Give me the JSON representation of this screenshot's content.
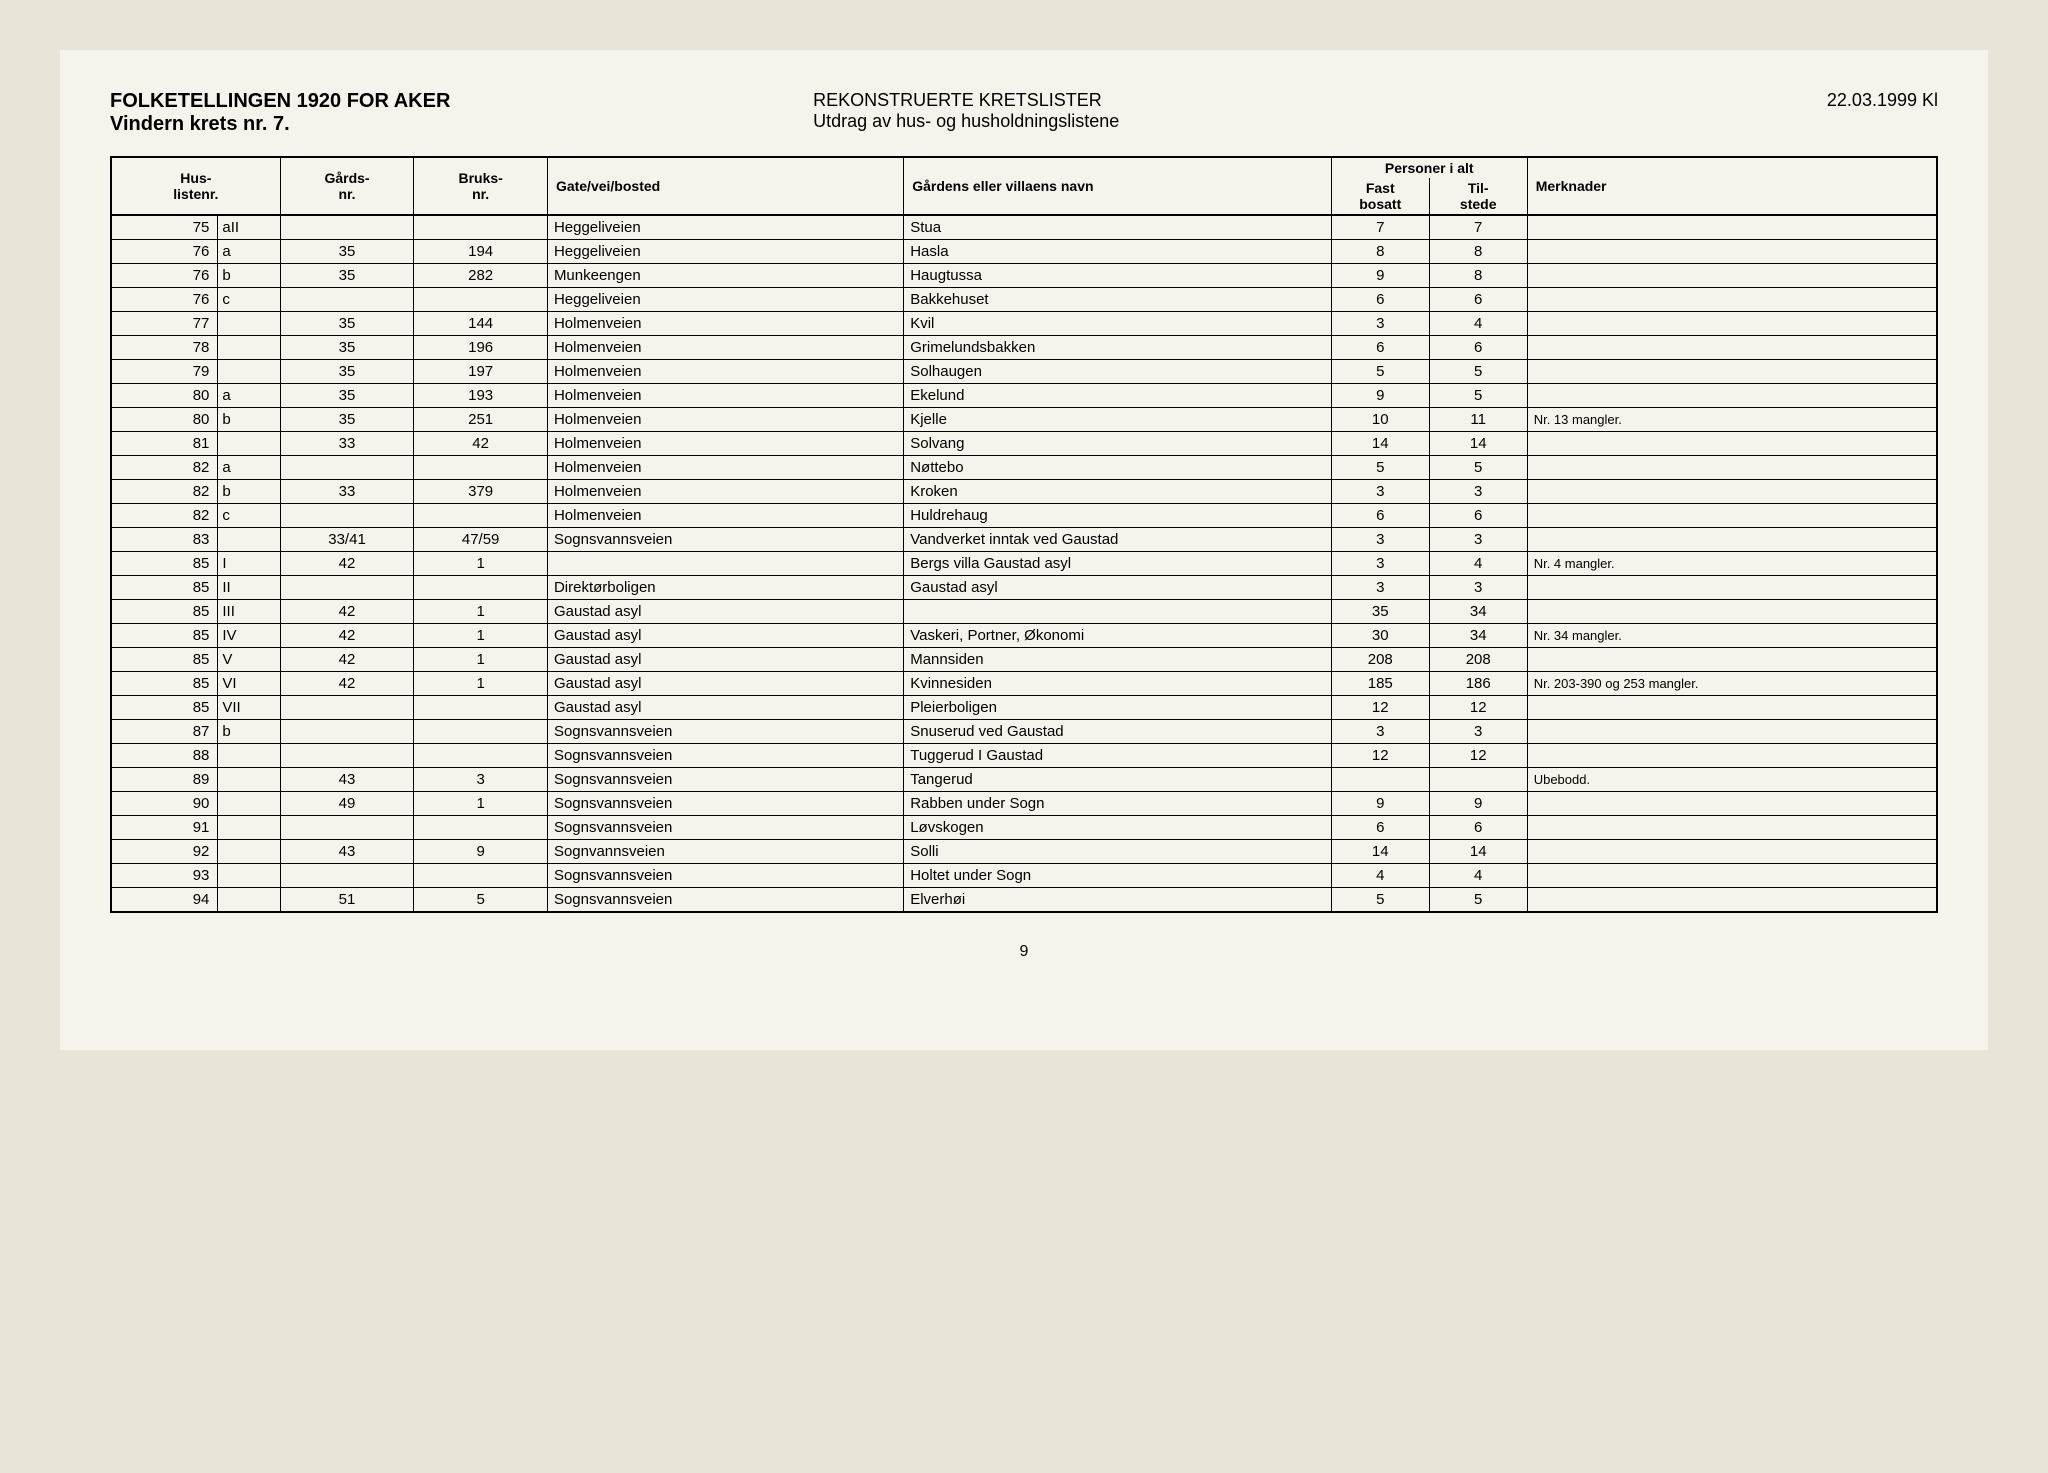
{
  "header": {
    "title": "FOLKETELLINGEN 1920 FOR AKER",
    "subtitle": "Vindern krets nr. 7.",
    "center_title": "REKONSTRUERTE KRETSLISTER",
    "center_subtitle": "Utdrag av hus- og husholdningslistene",
    "date": "22.03.1999 Kl"
  },
  "columns": {
    "huslistenr_1": "Hus-",
    "huslistenr_2": "listenr.",
    "gards_1": "Gårds-",
    "gards_2": "nr.",
    "bruks_1": "Bruks-",
    "bruks_2": "nr.",
    "gate": "Gate/vei/bosted",
    "villa": "Gårdens eller villaens navn",
    "personer": "Personer i alt",
    "fast_1": "Fast",
    "fast_2": "bosatt",
    "til_1": "Til-",
    "til_2": "stede",
    "merknader": "Merknader"
  },
  "rows": [
    {
      "num": "75",
      "sub": "aII",
      "gards": "",
      "bruks": "",
      "gate": "Heggeliveien",
      "villa": "Stua",
      "fast": "7",
      "til": "7",
      "merk": ""
    },
    {
      "num": "76",
      "sub": "a",
      "gards": "35",
      "bruks": "194",
      "gate": "Heggeliveien",
      "villa": "Hasla",
      "fast": "8",
      "til": "8",
      "merk": ""
    },
    {
      "num": "76",
      "sub": "b",
      "gards": "35",
      "bruks": "282",
      "gate": "Munkeengen",
      "villa": "Haugtussa",
      "fast": "9",
      "til": "8",
      "merk": ""
    },
    {
      "num": "76",
      "sub": "c",
      "gards": "",
      "bruks": "",
      "gate": "Heggeliveien",
      "villa": "Bakkehuset",
      "fast": "6",
      "til": "6",
      "merk": ""
    },
    {
      "num": "77",
      "sub": "",
      "gards": "35",
      "bruks": "144",
      "gate": "Holmenveien",
      "villa": "Kvil",
      "fast": "3",
      "til": "4",
      "merk": ""
    },
    {
      "num": "78",
      "sub": "",
      "gards": "35",
      "bruks": "196",
      "gate": "Holmenveien",
      "villa": "Grimelundsbakken",
      "fast": "6",
      "til": "6",
      "merk": ""
    },
    {
      "num": "79",
      "sub": "",
      "gards": "35",
      "bruks": "197",
      "gate": "Holmenveien",
      "villa": "Solhaugen",
      "fast": "5",
      "til": "5",
      "merk": ""
    },
    {
      "num": "80",
      "sub": "a",
      "gards": "35",
      "bruks": "193",
      "gate": "Holmenveien",
      "villa": "Ekelund",
      "fast": "9",
      "til": "5",
      "merk": ""
    },
    {
      "num": "80",
      "sub": "b",
      "gards": "35",
      "bruks": "251",
      "gate": "Holmenveien",
      "villa": "Kjelle",
      "fast": "10",
      "til": "11",
      "merk": "Nr. 13 mangler."
    },
    {
      "num": "81",
      "sub": "",
      "gards": "33",
      "bruks": "42",
      "gate": "Holmenveien",
      "villa": "Solvang",
      "fast": "14",
      "til": "14",
      "merk": ""
    },
    {
      "num": "82",
      "sub": "a",
      "gards": "",
      "bruks": "",
      "gate": "Holmenveien",
      "villa": "Nøttebo",
      "fast": "5",
      "til": "5",
      "merk": ""
    },
    {
      "num": "82",
      "sub": "b",
      "gards": "33",
      "bruks": "379",
      "gate": "Holmenveien",
      "villa": "Kroken",
      "fast": "3",
      "til": "3",
      "merk": ""
    },
    {
      "num": "82",
      "sub": "c",
      "gards": "",
      "bruks": "",
      "gate": "Holmenveien",
      "villa": "Huldrehaug",
      "fast": "6",
      "til": "6",
      "merk": ""
    },
    {
      "num": "83",
      "sub": "",
      "gards": "33/41",
      "bruks": "47/59",
      "gate": "Sognsvannsveien",
      "villa": "Vandverket inntak ved Gaustad",
      "fast": "3",
      "til": "3",
      "merk": ""
    },
    {
      "num": "85",
      "sub": "I",
      "gards": "42",
      "bruks": "1",
      "gate": "",
      "villa": "Bergs villa Gaustad asyl",
      "fast": "3",
      "til": "4",
      "merk": "Nr. 4 mangler."
    },
    {
      "num": "85",
      "sub": "II",
      "gards": "",
      "bruks": "",
      "gate": "Direktørboligen",
      "villa": "Gaustad asyl",
      "fast": "3",
      "til": "3",
      "merk": ""
    },
    {
      "num": "85",
      "sub": "III",
      "gards": "42",
      "bruks": "1",
      "gate": "Gaustad asyl",
      "villa": "",
      "fast": "35",
      "til": "34",
      "merk": ""
    },
    {
      "num": "85",
      "sub": "IV",
      "gards": "42",
      "bruks": "1",
      "gate": "Gaustad asyl",
      "villa": "Vaskeri, Portner, Økonomi",
      "fast": "30",
      "til": "34",
      "merk": "Nr. 34 mangler."
    },
    {
      "num": "85",
      "sub": "V",
      "gards": "42",
      "bruks": "1",
      "gate": "Gaustad asyl",
      "villa": "Mannsiden",
      "fast": "208",
      "til": "208",
      "merk": ""
    },
    {
      "num": "85",
      "sub": "VI",
      "gards": "42",
      "bruks": "1",
      "gate": "Gaustad asyl",
      "villa": "Kvinnesiden",
      "fast": "185",
      "til": "186",
      "merk": "Nr. 203-390 og 253 mangler."
    },
    {
      "num": "85",
      "sub": "VII",
      "gards": "",
      "bruks": "",
      "gate": "Gaustad asyl",
      "villa": "Pleierboligen",
      "fast": "12",
      "til": "12",
      "merk": ""
    },
    {
      "num": "87",
      "sub": "b",
      "gards": "",
      "bruks": "",
      "gate": "Sognsvannsveien",
      "villa": "Snuserud ved Gaustad",
      "fast": "3",
      "til": "3",
      "merk": ""
    },
    {
      "num": "88",
      "sub": "",
      "gards": "",
      "bruks": "",
      "gate": "Sognsvannsveien",
      "villa": "Tuggerud I Gaustad",
      "fast": "12",
      "til": "12",
      "merk": ""
    },
    {
      "num": "89",
      "sub": "",
      "gards": "43",
      "bruks": "3",
      "gate": "Sognsvannsveien",
      "villa": "Tangerud",
      "fast": "",
      "til": "",
      "merk": "Ubebodd."
    },
    {
      "num": "90",
      "sub": "",
      "gards": "49",
      "bruks": "1",
      "gate": "Sognsvannsveien",
      "villa": "Rabben under Sogn",
      "fast": "9",
      "til": "9",
      "merk": ""
    },
    {
      "num": "91",
      "sub": "",
      "gards": "",
      "bruks": "",
      "gate": "Sognsvannsveien",
      "villa": "Løvskogen",
      "fast": "6",
      "til": "6",
      "merk": ""
    },
    {
      "num": "92",
      "sub": "",
      "gards": "43",
      "bruks": "9",
      "gate": "Sognvannsveien",
      "villa": "Solli",
      "fast": "14",
      "til": "14",
      "merk": ""
    },
    {
      "num": "93",
      "sub": "",
      "gards": "",
      "bruks": "",
      "gate": "Sognsvannsveien",
      "villa": "Holtet under Sogn",
      "fast": "4",
      "til": "4",
      "merk": ""
    },
    {
      "num": "94",
      "sub": "",
      "gards": "51",
      "bruks": "5",
      "gate": "Sognsvannsveien",
      "villa": "Elverhøi",
      "fast": "5",
      "til": "5",
      "merk": ""
    }
  ],
  "page_number": "9"
}
